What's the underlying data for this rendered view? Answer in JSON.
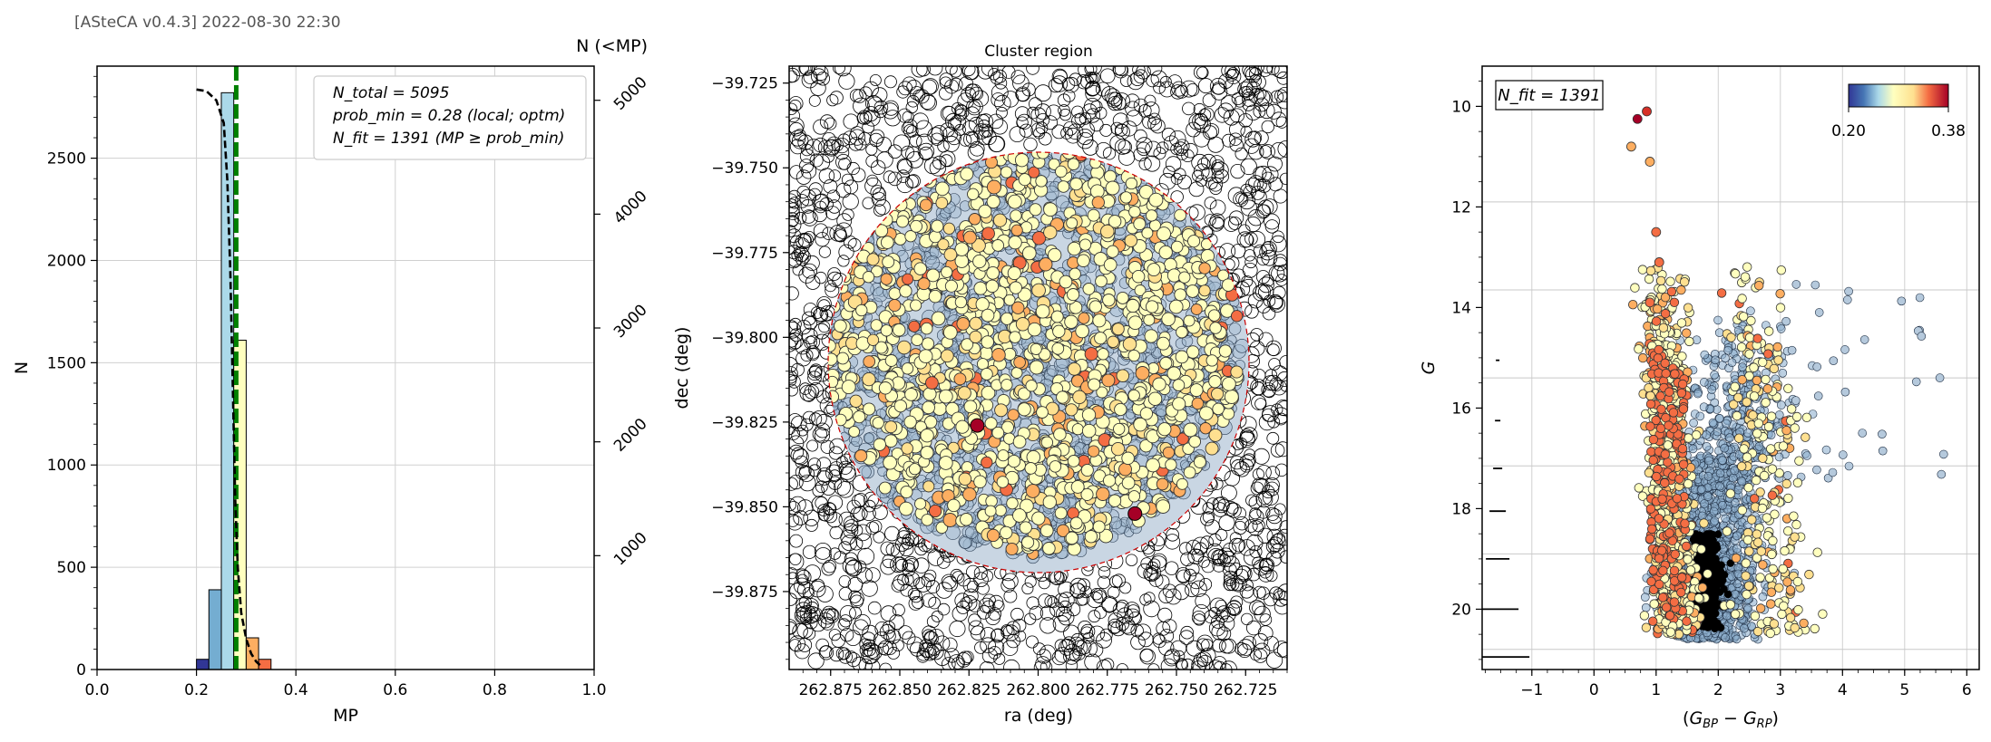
{
  "header": {
    "version_stamp": "[ASteCA v0.4.3] 2022-08-30 22:30"
  },
  "colors": {
    "accent_line": "#008000",
    "cluster_edge": "#cc0000",
    "colormap": [
      "#313695",
      "#4575b4",
      "#74add1",
      "#abd9e9",
      "#e0f3f8",
      "#ffffbf",
      "#fee090",
      "#fdae61",
      "#f46d43",
      "#d73027",
      "#a50026"
    ]
  },
  "chart_data": [
    {
      "type": "bar",
      "title": "",
      "xlabel": "MP",
      "ylabel": "N",
      "y2label": "N (<MP)",
      "xlim": [
        0,
        1.0
      ],
      "ylim": [
        0,
        2950
      ],
      "y2lim": [
        0,
        5300
      ],
      "xticks": [
        "0.0",
        "0.2",
        "0.4",
        "0.6",
        "0.8",
        "1.0"
      ],
      "yticks": [
        "0",
        "500",
        "1000",
        "1500",
        "2000",
        "2500"
      ],
      "y2ticks": [
        "1000",
        "2000",
        "3000",
        "4000",
        "5000"
      ],
      "bin_width": 0.025,
      "bins": [
        {
          "x": 0.2,
          "value": 50
        },
        {
          "x": 0.225,
          "value": 390
        },
        {
          "x": 0.25,
          "value": 2820
        },
        {
          "x": 0.275,
          "value": 1610
        },
        {
          "x": 0.3,
          "value": 155
        },
        {
          "x": 0.325,
          "value": 50
        }
      ],
      "prob_min_line": 0.28,
      "cumulative_curve": {
        "x": [
          0.2,
          0.22,
          0.24,
          0.255,
          0.262,
          0.268,
          0.273,
          0.278,
          0.283,
          0.29,
          0.3,
          0.31,
          0.32,
          0.33
        ],
        "y": [
          5095,
          5080,
          5000,
          4800,
          4300,
          3500,
          2500,
          1500,
          900,
          500,
          270,
          140,
          70,
          30
        ]
      },
      "legend": [
        "N_total = 5095",
        "prob_min = 0.28 (local; optm)",
        "N_fit = 1391 (MP ≥ prob_min)"
      ]
    },
    {
      "type": "scatter",
      "title": "Cluster region",
      "xlabel": "ra (deg)",
      "ylabel": "dec (deg)",
      "xlim": [
        262.89,
        262.71
      ],
      "ylim": [
        -39.898,
        -39.72
      ],
      "xticks": [
        "262.875",
        "262.850",
        "262.825",
        "262.800",
        "262.775",
        "262.750",
        "262.725"
      ],
      "yticks": [
        "−39.725",
        "−39.750",
        "−39.775",
        "−39.800",
        "−39.825",
        "−39.850",
        "−39.875"
      ],
      "cluster_center": [
        262.802,
        -39.803
      ],
      "cluster_radius_deg": 0.062,
      "highlighted_points": [
        [
          262.822,
          -39.826
        ],
        [
          262.765,
          -39.852
        ]
      ]
    },
    {
      "type": "scatter",
      "title": "",
      "xlabel": "(G_BP − G_RP)",
      "ylabel": "G",
      "xlim": [
        -1.8,
        6.2
      ],
      "ylim": [
        21.2,
        9.2
      ],
      "xticks": [
        "−1",
        "0",
        "1",
        "2",
        "3",
        "4",
        "5",
        "6"
      ],
      "yticks": [
        "10",
        "12",
        "14",
        "16",
        "18",
        "20"
      ],
      "label_box": "N_fit = 1391",
      "colorbar": {
        "min_label": "0.20",
        "max_label": "0.38"
      },
      "bright_members": [
        [
          0.7,
          10.25
        ],
        [
          0.85,
          10.1
        ],
        [
          0.6,
          10.8
        ],
        [
          0.9,
          11.1
        ],
        [
          1.0,
          12.5
        ],
        [
          1.05,
          13.1
        ],
        [
          0.9,
          13.9
        ]
      ]
    }
  ]
}
